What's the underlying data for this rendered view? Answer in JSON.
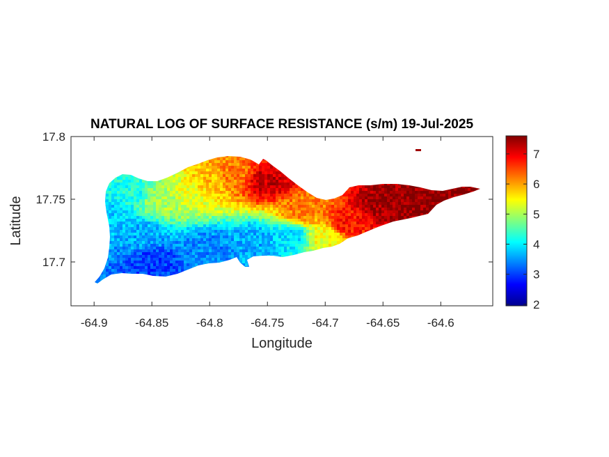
{
  "chart_data": {
    "type": "heatmap",
    "title": "NATURAL LOG OF SURFACE RESISTANCE (s/m) 19-Jul-2025",
    "xlabel": "Longitude",
    "ylabel": "Latitude",
    "xlim": [
      -64.92,
      -64.555
    ],
    "ylim": [
      17.665,
      17.8
    ],
    "xticks": [
      -64.9,
      -64.85,
      -64.8,
      -64.75,
      -64.7,
      -64.65,
      -64.6
    ],
    "xtick_labels": [
      "-64.9",
      "-64.85",
      "-64.8",
      "-64.75",
      "-64.7",
      "-64.65",
      "-64.6"
    ],
    "yticks": [
      17.7,
      17.75,
      17.8
    ],
    "ytick_labels": [
      "17.7",
      "17.75",
      "17.8"
    ],
    "colorbar": {
      "colormap": "jet",
      "range": [
        1.95,
        7.6
      ],
      "ticks": [
        2,
        3,
        4,
        5,
        6,
        7
      ],
      "tick_labels": [
        "2",
        "3",
        "4",
        "5",
        "6",
        "7"
      ]
    },
    "grid": false,
    "field_description_points": [
      {
        "lon": -64.89,
        "lat": 17.74,
        "value": 3.8
      },
      {
        "lon": -64.87,
        "lat": 17.755,
        "value": 4.2
      },
      {
        "lon": -64.86,
        "lat": 17.72,
        "value": 3.6
      },
      {
        "lon": -64.84,
        "lat": 17.75,
        "value": 5.0
      },
      {
        "lon": -64.82,
        "lat": 17.755,
        "value": 5.3
      },
      {
        "lon": -64.8,
        "lat": 17.765,
        "value": 5.8
      },
      {
        "lon": -64.78,
        "lat": 17.77,
        "value": 6.2
      },
      {
        "lon": -64.75,
        "lat": 17.765,
        "value": 7.2
      },
      {
        "lon": -64.72,
        "lat": 17.74,
        "value": 6.2
      },
      {
        "lon": -64.7,
        "lat": 17.72,
        "value": 5.4
      },
      {
        "lon": -64.68,
        "lat": 17.73,
        "value": 6.8
      },
      {
        "lon": -64.65,
        "lat": 17.745,
        "value": 7.4
      },
      {
        "lon": -64.62,
        "lat": 17.745,
        "value": 7.5
      },
      {
        "lon": -64.58,
        "lat": 17.755,
        "value": 7.5
      },
      {
        "lon": -64.85,
        "lat": 17.7,
        "value": 3.0
      },
      {
        "lon": -64.8,
        "lat": 17.71,
        "value": 3.4
      },
      {
        "lon": -64.76,
        "lat": 17.715,
        "value": 3.6
      },
      {
        "lon": -64.73,
        "lat": 17.72,
        "value": 3.9
      }
    ]
  }
}
